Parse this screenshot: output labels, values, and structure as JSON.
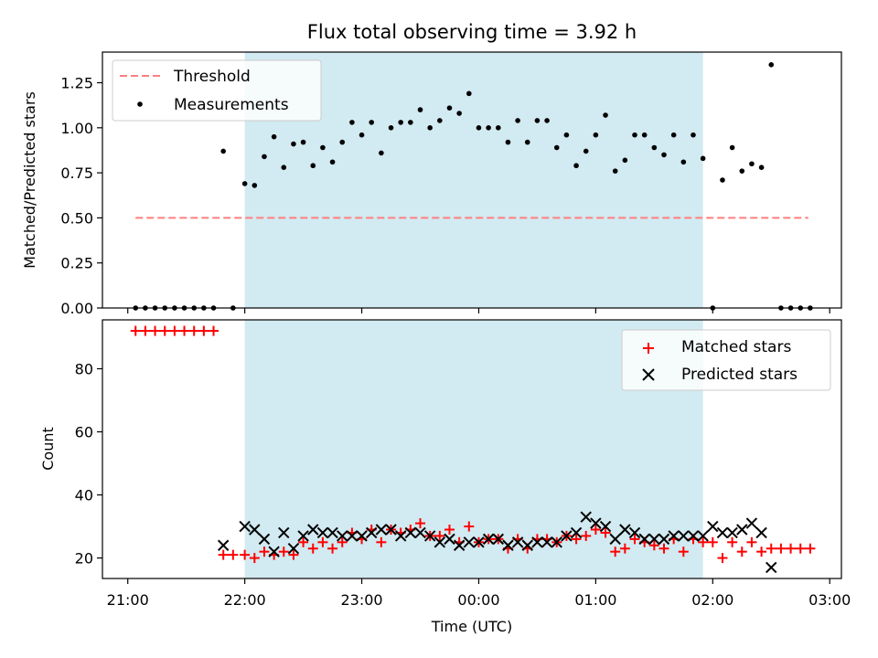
{
  "title": "Flux total observing time = 3.92 h",
  "colors": {
    "threshold": "#ff7f7f",
    "measurement": "#000000",
    "matched": "#ff0000",
    "predicted": "#000000",
    "span": "#add8e6"
  },
  "chart_data": [
    {
      "type": "scatter",
      "ylabel": "Matched/Predicted stars",
      "ylim": [
        0,
        1.42
      ],
      "yticks": [
        0.0,
        0.25,
        0.5,
        0.75,
        1.0,
        1.25
      ],
      "ytick_labels": [
        "0.00",
        "0.25",
        "0.50",
        "0.75",
        "1.00",
        "1.25"
      ],
      "xlim": [
        "20:47",
        "03:06"
      ],
      "x_ticks": [
        "21:00",
        "22:00",
        "23:00",
        "00:00",
        "01:00",
        "02:00",
        "03:00"
      ],
      "shaded_span": [
        "22:00",
        "01:55"
      ],
      "legend": {
        "position": "top-left",
        "entries": [
          "Threshold",
          "Measurements"
        ]
      },
      "threshold": {
        "name": "Threshold",
        "y": 0.5,
        "x_range": [
          "21:04",
          "02:49"
        ],
        "style": "dashed"
      },
      "series": [
        {
          "name": "Measurements",
          "marker": "dot",
          "points": [
            [
              "21:04",
              0.0
            ],
            [
              "21:09",
              0.0
            ],
            [
              "21:14",
              0.0
            ],
            [
              "21:19",
              0.0
            ],
            [
              "21:24",
              0.0
            ],
            [
              "21:29",
              0.0
            ],
            [
              "21:34",
              0.0
            ],
            [
              "21:39",
              0.0
            ],
            [
              "21:44",
              0.0
            ],
            [
              "21:49",
              0.87
            ],
            [
              "21:54",
              0.0
            ],
            [
              "22:00",
              0.69
            ],
            [
              "22:05",
              0.68
            ],
            [
              "22:10",
              0.84
            ],
            [
              "22:15",
              0.95
            ],
            [
              "22:20",
              0.78
            ],
            [
              "22:25",
              0.91
            ],
            [
              "22:30",
              0.92
            ],
            [
              "22:35",
              0.79
            ],
            [
              "22:40",
              0.89
            ],
            [
              "22:45",
              0.81
            ],
            [
              "22:50",
              0.92
            ],
            [
              "22:55",
              1.03
            ],
            [
              "23:00",
              0.96
            ],
            [
              "23:05",
              1.03
            ],
            [
              "23:10",
              0.86
            ],
            [
              "23:15",
              1.0
            ],
            [
              "23:20",
              1.03
            ],
            [
              "23:25",
              1.03
            ],
            [
              "23:30",
              1.1
            ],
            [
              "23:35",
              1.0
            ],
            [
              "23:40",
              1.04
            ],
            [
              "23:45",
              1.11
            ],
            [
              "23:50",
              1.08
            ],
            [
              "23:55",
              1.19
            ],
            [
              "00:00",
              1.0
            ],
            [
              "00:05",
              1.0
            ],
            [
              "00:10",
              1.0
            ],
            [
              "00:15",
              0.92
            ],
            [
              "00:20",
              1.04
            ],
            [
              "00:25",
              0.92
            ],
            [
              "00:30",
              1.04
            ],
            [
              "00:35",
              1.04
            ],
            [
              "00:40",
              0.89
            ],
            [
              "00:45",
              0.96
            ],
            [
              "00:50",
              0.79
            ],
            [
              "00:55",
              0.87
            ],
            [
              "01:00",
              0.96
            ],
            [
              "01:05",
              1.07
            ],
            [
              "01:10",
              0.76
            ],
            [
              "01:15",
              0.82
            ],
            [
              "01:20",
              0.96
            ],
            [
              "01:25",
              0.96
            ],
            [
              "01:30",
              0.89
            ],
            [
              "01:35",
              0.85
            ],
            [
              "01:40",
              0.96
            ],
            [
              "01:45",
              0.81
            ],
            [
              "01:50",
              0.96
            ],
            [
              "01:55",
              0.83
            ],
            [
              "02:00",
              0.0
            ],
            [
              "02:05",
              0.71
            ],
            [
              "02:10",
              0.89
            ],
            [
              "02:15",
              0.76
            ],
            [
              "02:20",
              0.8
            ],
            [
              "02:25",
              0.78
            ],
            [
              "02:30",
              1.35
            ],
            [
              "02:35",
              0.0
            ],
            [
              "02:40",
              0.0
            ],
            [
              "02:45",
              0.0
            ],
            [
              "02:50",
              0.0
            ]
          ]
        }
      ]
    },
    {
      "type": "scatter",
      "xlabel": "Time (UTC)",
      "ylabel": "Count",
      "ylim": [
        13.5,
        95.5
      ],
      "yticks": [
        20,
        40,
        60,
        80
      ],
      "ytick_labels": [
        "20",
        "40",
        "60",
        "80"
      ],
      "xlim": [
        "20:47",
        "03:06"
      ],
      "x_ticks": [
        "21:00",
        "22:00",
        "23:00",
        "00:00",
        "01:00",
        "02:00",
        "03:00"
      ],
      "x_tick_labels": [
        "21:00",
        "22:00",
        "23:00",
        "00:00",
        "01:00",
        "02:00",
        "03:00"
      ],
      "shaded_span": [
        "22:00",
        "01:55"
      ],
      "legend": {
        "position": "top-right",
        "entries": [
          "Matched stars",
          "Predicted stars"
        ]
      },
      "series": [
        {
          "name": "Matched stars",
          "marker": "plus",
          "points": [
            [
              "21:04",
              92
            ],
            [
              "21:09",
              92
            ],
            [
              "21:14",
              92
            ],
            [
              "21:19",
              92
            ],
            [
              "21:24",
              92
            ],
            [
              "21:29",
              92
            ],
            [
              "21:34",
              92
            ],
            [
              "21:39",
              92
            ],
            [
              "21:44",
              92
            ],
            [
              "21:49",
              21
            ],
            [
              "21:54",
              21
            ],
            [
              "22:00",
              21
            ],
            [
              "22:05",
              20
            ],
            [
              "22:10",
              22
            ],
            [
              "22:15",
              21
            ],
            [
              "22:20",
              22
            ],
            [
              "22:25",
              21
            ],
            [
              "22:30",
              25
            ],
            [
              "22:35",
              23
            ],
            [
              "22:40",
              25
            ],
            [
              "22:45",
              23
            ],
            [
              "22:50",
              25
            ],
            [
              "22:55",
              28
            ],
            [
              "23:00",
              26
            ],
            [
              "23:05",
              29
            ],
            [
              "23:10",
              25
            ],
            [
              "23:15",
              29
            ],
            [
              "23:20",
              28
            ],
            [
              "23:25",
              29
            ],
            [
              "23:30",
              31
            ],
            [
              "23:35",
              27
            ],
            [
              "23:40",
              27
            ],
            [
              "23:45",
              29
            ],
            [
              "23:50",
              25
            ],
            [
              "23:55",
              30
            ],
            [
              "00:00",
              25
            ],
            [
              "00:05",
              26
            ],
            [
              "00:10",
              26
            ],
            [
              "00:15",
              23
            ],
            [
              "00:20",
              26
            ],
            [
              "00:25",
              23
            ],
            [
              "00:30",
              26
            ],
            [
              "00:35",
              26
            ],
            [
              "00:40",
              25
            ],
            [
              "00:45",
              27
            ],
            [
              "00:50",
              26
            ],
            [
              "00:55",
              27
            ],
            [
              "01:00",
              29
            ],
            [
              "01:05",
              28
            ],
            [
              "01:10",
              22
            ],
            [
              "01:15",
              23
            ],
            [
              "01:20",
              26
            ],
            [
              "01:25",
              25
            ],
            [
              "01:30",
              24
            ],
            [
              "01:35",
              23
            ],
            [
              "01:40",
              26
            ],
            [
              "01:45",
              22
            ],
            [
              "01:50",
              26
            ],
            [
              "01:55",
              25
            ],
            [
              "02:00",
              25
            ],
            [
              "02:05",
              20
            ],
            [
              "02:10",
              25
            ],
            [
              "02:15",
              22
            ],
            [
              "02:20",
              25
            ],
            [
              "02:25",
              22
            ],
            [
              "02:30",
              23
            ],
            [
              "02:35",
              23
            ],
            [
              "02:40",
              23
            ],
            [
              "02:45",
              23
            ],
            [
              "02:50",
              23
            ]
          ]
        },
        {
          "name": "Predicted stars",
          "marker": "x",
          "points": [
            [
              "21:49",
              24
            ],
            [
              "22:00",
              30
            ],
            [
              "22:05",
              29
            ],
            [
              "22:10",
              26
            ],
            [
              "22:15",
              22
            ],
            [
              "22:20",
              28
            ],
            [
              "22:25",
              23
            ],
            [
              "22:30",
              27
            ],
            [
              "22:35",
              29
            ],
            [
              "22:40",
              28
            ],
            [
              "22:45",
              28
            ],
            [
              "22:50",
              27
            ],
            [
              "22:55",
              27
            ],
            [
              "23:00",
              27
            ],
            [
              "23:05",
              28
            ],
            [
              "23:10",
              29
            ],
            [
              "23:15",
              29
            ],
            [
              "23:20",
              27
            ],
            [
              "23:25",
              28
            ],
            [
              "23:30",
              28
            ],
            [
              "23:35",
              27
            ],
            [
              "23:40",
              25
            ],
            [
              "23:45",
              26
            ],
            [
              "23:50",
              24
            ],
            [
              "23:55",
              25
            ],
            [
              "00:00",
              25
            ],
            [
              "00:05",
              26
            ],
            [
              "00:10",
              26
            ],
            [
              "00:15",
              24
            ],
            [
              "00:20",
              25
            ],
            [
              "00:25",
              24
            ],
            [
              "00:30",
              25
            ],
            [
              "00:35",
              25
            ],
            [
              "00:40",
              25
            ],
            [
              "00:45",
              27
            ],
            [
              "00:50",
              28
            ],
            [
              "00:55",
              33
            ],
            [
              "01:00",
              31
            ],
            [
              "01:05",
              30
            ],
            [
              "01:10",
              26
            ],
            [
              "01:15",
              29
            ],
            [
              "01:20",
              28
            ],
            [
              "01:25",
              26
            ],
            [
              "01:30",
              26
            ],
            [
              "01:35",
              26
            ],
            [
              "01:40",
              27
            ],
            [
              "01:45",
              27
            ],
            [
              "01:50",
              27
            ],
            [
              "01:55",
              27
            ],
            [
              "02:00",
              30
            ],
            [
              "02:05",
              28
            ],
            [
              "02:10",
              28
            ],
            [
              "02:15",
              29
            ],
            [
              "02:20",
              31
            ],
            [
              "02:25",
              28
            ],
            [
              "02:30",
              17
            ]
          ]
        }
      ]
    }
  ]
}
